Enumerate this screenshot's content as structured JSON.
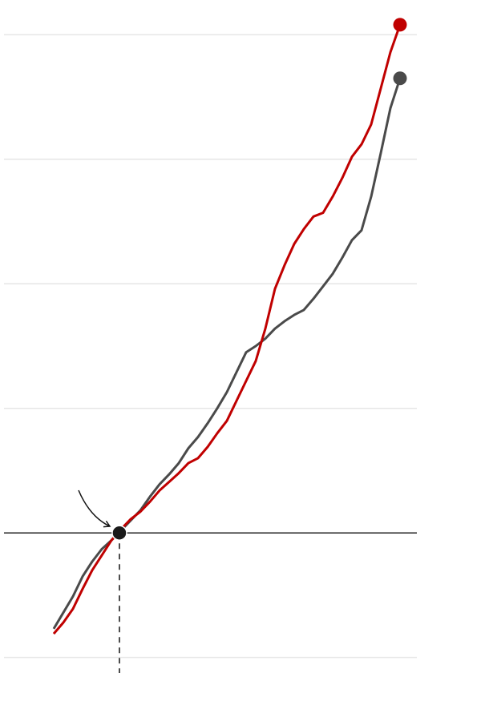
{
  "chart_data": {
    "type": "line",
    "x": [
      0,
      1,
      2,
      3,
      4,
      5,
      6,
      7,
      8,
      9,
      10,
      11,
      12,
      13,
      14,
      15,
      16,
      17,
      18,
      19,
      20,
      21,
      22,
      23,
      24,
      25,
      26,
      27,
      28,
      29,
      30,
      31,
      32,
      33,
      34,
      35,
      36
    ],
    "series": [
      {
        "color": "#4a4a4a",
        "values": [
          -0.77,
          -0.64,
          -0.51,
          -0.35,
          -0.23,
          -0.13,
          -0.06,
          0.02,
          0.1,
          0.18,
          0.29,
          0.39,
          0.47,
          0.56,
          0.68,
          0.77,
          0.88,
          1.0,
          1.13,
          1.29,
          1.45,
          1.5,
          1.56,
          1.64,
          1.7,
          1.75,
          1.79,
          1.88,
          1.98,
          2.08,
          2.21,
          2.35,
          2.43,
          2.7,
          3.05,
          3.41,
          3.65
        ]
      },
      {
        "color": "#c00000",
        "values": [
          -0.81,
          -0.72,
          -0.61,
          -0.45,
          -0.3,
          -0.18,
          -0.06,
          0.03,
          0.11,
          0.17,
          0.25,
          0.34,
          0.41,
          0.48,
          0.56,
          0.6,
          0.69,
          0.8,
          0.9,
          1.06,
          1.22,
          1.38,
          1.64,
          1.96,
          2.15,
          2.32,
          2.44,
          2.54,
          2.57,
          2.7,
          2.85,
          3.02,
          3.12,
          3.28,
          3.57,
          3.86,
          4.08
        ]
      }
    ],
    "xlim": [
      0,
      36
    ],
    "ylim": [
      -1.15,
      4.15
    ],
    "yticks": [
      -1,
      0,
      1,
      2,
      3,
      4
    ],
    "grid": true,
    "marker": {
      "x": 6.83,
      "y": 0
    }
  }
}
